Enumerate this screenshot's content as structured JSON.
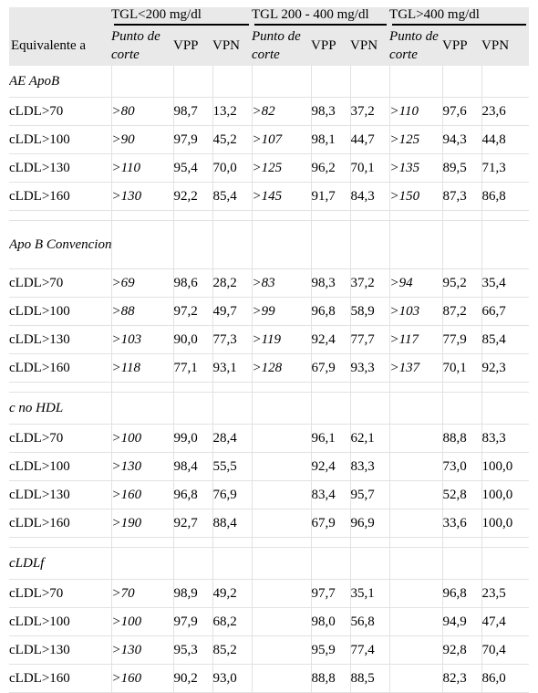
{
  "header": {
    "row_label": "Equivalente a",
    "groups": [
      "TGL<200 mg/dl",
      "TGL 200 - 400 mg/dl",
      "TGL>400 mg/dl"
    ],
    "subheaders": [
      "Punto de corte",
      "VPP",
      "VPN"
    ]
  },
  "sections": [
    {
      "title": "AE ApoB",
      "rows": [
        {
          "label": "cLDL>70",
          "cells": [
            ">80",
            "98,7",
            "13,2",
            ">82",
            "98,3",
            "37,2",
            ">110",
            "97,6",
            "23,6"
          ]
        },
        {
          "label": "cLDL>100",
          "cells": [
            ">90",
            "97,9",
            "45,2",
            ">107",
            "98,1",
            "44,7",
            ">125",
            "94,3",
            "44,8"
          ]
        },
        {
          "label": "cLDL>130",
          "cells": [
            ">110",
            "95,4",
            "70,0",
            ">125",
            "96,2",
            "70,1",
            ">135",
            "89,5",
            "71,3"
          ]
        },
        {
          "label": "cLDL>160",
          "cells": [
            ">130",
            "92,2",
            "85,4",
            ">145",
            "91,7",
            "84,3",
            ">150",
            "87,3",
            "86,8"
          ]
        }
      ]
    },
    {
      "title": "Apo B Convencional",
      "rows": [
        {
          "label": "cLDL>70",
          "cells": [
            ">69",
            "98,6",
            "28,2",
            ">83",
            "98,3",
            "37,2",
            ">94",
            "95,2",
            "35,4"
          ]
        },
        {
          "label": "cLDL>100",
          "cells": [
            ">88",
            "97,2",
            "49,7",
            ">99",
            "96,8",
            "58,9",
            ">103",
            "87,2",
            "66,7"
          ]
        },
        {
          "label": "cLDL>130",
          "cells": [
            ">103",
            "90,0",
            "77,3",
            ">119",
            "92,4",
            "77,7",
            ">117",
            "77,9",
            "85,4"
          ]
        },
        {
          "label": "cLDL>160",
          "cells": [
            ">118",
            "77,1",
            "93,1",
            ">128",
            "67,9",
            "93,3",
            ">137",
            "70,1",
            "92,3"
          ]
        }
      ]
    },
    {
      "title": "c no HDL",
      "rows": [
        {
          "label": "cLDL>70",
          "cells": [
            ">100",
            "99,0",
            "28,4",
            "",
            "96,1",
            "62,1",
            "",
            "88,8",
            "83,3"
          ]
        },
        {
          "label": "cLDL>100",
          "cells": [
            ">130",
            "98,4",
            "55,5",
            "",
            "92,4",
            "83,3",
            "",
            "73,0",
            "100,0"
          ]
        },
        {
          "label": "cLDL>130",
          "cells": [
            ">160",
            "96,8",
            "76,9",
            "",
            "83,4",
            "95,7",
            "",
            "52,8",
            "100,0"
          ]
        },
        {
          "label": "cLDL>160",
          "cells": [
            ">190",
            "92,7",
            "88,4",
            "",
            "67,9",
            "96,9",
            "",
            "33,6",
            "100,0"
          ]
        }
      ]
    },
    {
      "title": "cLDLf",
      "rows": [
        {
          "label": "cLDL>70",
          "cells": [
            ">70",
            "98,9",
            "49,2",
            "",
            "97,7",
            "35,1",
            "",
            "96,8",
            "23,5"
          ]
        },
        {
          "label": "cLDL>100",
          "cells": [
            ">100",
            "97,9",
            "68,2",
            "",
            "98,0",
            "56,8",
            "",
            "94,9",
            "47,4"
          ]
        },
        {
          "label": "cLDL>130",
          "cells": [
            ">130",
            "95,3",
            "85,2",
            "",
            "95,9",
            "77,4",
            "",
            "92,8",
            "70,4"
          ]
        },
        {
          "label": "cLDL>160",
          "cells": [
            ">160",
            "90,2",
            "93,0",
            "",
            "88,8",
            "88,5",
            "",
            "82,3",
            "86,0"
          ]
        }
      ]
    }
  ]
}
